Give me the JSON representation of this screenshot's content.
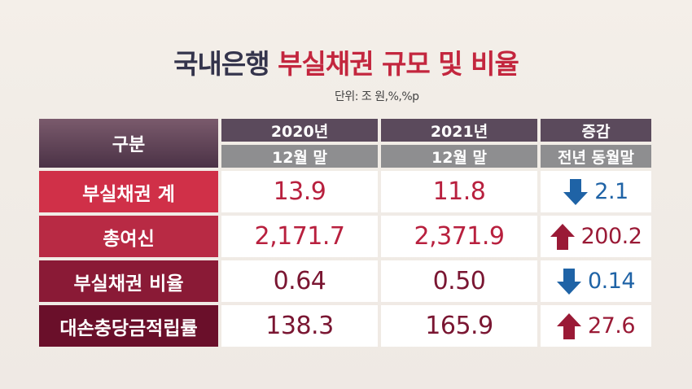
{
  "title": {
    "part1": "국내은행",
    "part2": "부실채권 규모 및 비율"
  },
  "unit": "단위: 조 원,%,%p",
  "header": {
    "category": "구분",
    "col1_top": "2020년",
    "col1_sub": "12월 말",
    "col2_top": "2021년",
    "col2_sub": "12월 말",
    "col3_top": "증감",
    "col3_sub": "전년 동월말"
  },
  "rows": [
    {
      "label": "부실채권 계",
      "v2020": "13.9",
      "v2021": "11.8",
      "change": "2.1",
      "direction": "down"
    },
    {
      "label": "총여신",
      "v2020": "2,171.7",
      "v2021": "2,371.9",
      "change": "200.2",
      "direction": "up"
    },
    {
      "label": "부실채권 비율",
      "v2020": "0.64",
      "v2021": "0.50",
      "change": "0.14",
      "direction": "down"
    },
    {
      "label": "대손충당금적립률",
      "v2020": "138.3",
      "v2021": "165.9",
      "change": "27.6",
      "direction": "up"
    }
  ],
  "colors": {
    "up": "#9a1a36",
    "down": "#1f63a6",
    "title_accent": "#c3263e"
  }
}
